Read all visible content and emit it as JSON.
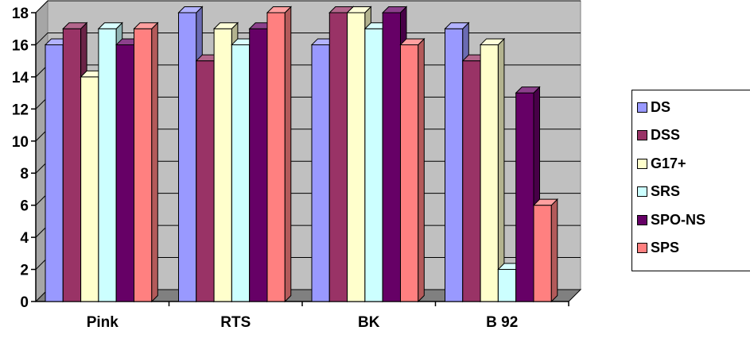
{
  "chart_data": {
    "type": "bar",
    "categories": [
      "Pink",
      "RTS",
      "BK",
      "B 92"
    ],
    "series": [
      {
        "name": "DS",
        "color": "#9999ff",
        "values": [
          16,
          18,
          16,
          17
        ]
      },
      {
        "name": "DSS",
        "color": "#993366",
        "values": [
          17,
          15,
          18,
          15
        ]
      },
      {
        "name": "G17+",
        "color": "#ffffcc",
        "values": [
          14,
          17,
          18,
          16
        ]
      },
      {
        "name": "SRS",
        "color": "#ccffff",
        "values": [
          17,
          16,
          17,
          2
        ]
      },
      {
        "name": "SPO-NS",
        "color": "#660066",
        "values": [
          16,
          17,
          18,
          13
        ]
      },
      {
        "name": "SPS",
        "color": "#ff8080",
        "values": [
          17,
          18,
          16,
          6
        ]
      }
    ],
    "y_ticks": [
      "0",
      "2",
      "4",
      "6",
      "8",
      "10",
      "12",
      "14",
      "16",
      "18"
    ],
    "ylim": [
      0,
      18
    ],
    "grid": true,
    "legend_position": "right",
    "style": "3d-clustered-column",
    "plot_background": "#c0c0c0"
  }
}
